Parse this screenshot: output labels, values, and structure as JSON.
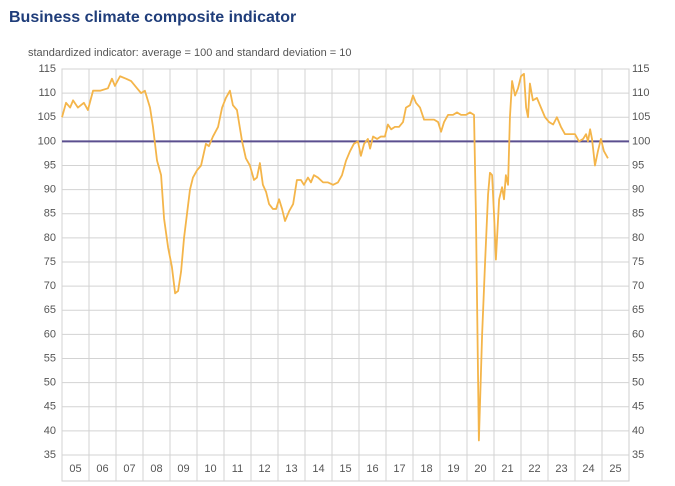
{
  "chart_data": {
    "type": "line",
    "title": "Business climate composite indicator",
    "subtitle": "standardized indicator: average = 100 and standard deviation = 10",
    "color": "#f4b54a",
    "grid": true,
    "reference_line": {
      "value": 100,
      "color": "#5b4f8f"
    },
    "xlim": [
      2005,
      2026
    ],
    "xticks": [
      {
        "value": 2005,
        "label": "05"
      },
      {
        "value": 2006,
        "label": "06"
      },
      {
        "value": 2007,
        "label": "07"
      },
      {
        "value": 2008,
        "label": "08"
      },
      {
        "value": 2009,
        "label": "09"
      },
      {
        "value": 2010,
        "label": "10"
      },
      {
        "value": 2011,
        "label": "11"
      },
      {
        "value": 2012,
        "label": "12"
      },
      {
        "value": 2013,
        "label": "13"
      },
      {
        "value": 2014,
        "label": "14"
      },
      {
        "value": 2015,
        "label": "15"
      },
      {
        "value": 2016,
        "label": "16"
      },
      {
        "value": 2017,
        "label": "17"
      },
      {
        "value": 2018,
        "label": "18"
      },
      {
        "value": 2019,
        "label": "19"
      },
      {
        "value": 2020,
        "label": "20"
      },
      {
        "value": 2021,
        "label": "21"
      },
      {
        "value": 2022,
        "label": "22"
      },
      {
        "value": 2023,
        "label": "23"
      },
      {
        "value": 2024,
        "label": "24"
      },
      {
        "value": 2025,
        "label": "25"
      }
    ],
    "ylim": [
      35,
      115
    ],
    "yticks": [
      35,
      40,
      45,
      50,
      55,
      60,
      65,
      70,
      75,
      80,
      85,
      90,
      95,
      100,
      105,
      110,
      115
    ],
    "x": [
      2005.0,
      2005.15,
      2005.3,
      2005.41,
      2005.59,
      2005.81,
      2005.96,
      2006.15,
      2006.41,
      2006.7,
      2006.85,
      2006.96,
      2007.15,
      2007.37,
      2007.56,
      2007.78,
      2007.93,
      2008.07,
      2008.26,
      2008.37,
      2008.52,
      2008.67,
      2008.78,
      2008.93,
      2009.07,
      2009.19,
      2009.3,
      2009.41,
      2009.52,
      2009.63,
      2009.74,
      2009.85,
      2010.0,
      2010.15,
      2010.33,
      2010.44,
      2010.59,
      2010.78,
      2010.93,
      2011.07,
      2011.22,
      2011.33,
      2011.48,
      2011.67,
      2011.81,
      2011.96,
      2012.11,
      2012.22,
      2012.33,
      2012.44,
      2012.56,
      2012.67,
      2012.81,
      2012.93,
      2013.04,
      2013.15,
      2013.26,
      2013.41,
      2013.56,
      2013.7,
      2013.85,
      2013.96,
      2014.11,
      2014.22,
      2014.33,
      2014.48,
      2014.67,
      2014.85,
      2015.04,
      2015.22,
      2015.37,
      2015.52,
      2015.67,
      2015.81,
      2015.96,
      2016.07,
      2016.19,
      2016.33,
      2016.41,
      2016.52,
      2016.67,
      2016.81,
      2016.96,
      2017.07,
      2017.19,
      2017.33,
      2017.48,
      2017.63,
      2017.74,
      2017.89,
      2018.0,
      2018.11,
      2018.26,
      2018.41,
      2018.59,
      2018.78,
      2018.93,
      2019.04,
      2019.15,
      2019.3,
      2019.48,
      2019.63,
      2019.78,
      2019.96,
      2020.11,
      2020.26,
      2020.33,
      2020.44,
      2020.56,
      2020.67,
      2020.78,
      2020.85,
      2020.93,
      2021.0,
      2021.07,
      2021.19,
      2021.3,
      2021.37,
      2021.44,
      2021.52,
      2021.59,
      2021.67,
      2021.78,
      2021.89,
      2022.0,
      2022.11,
      2022.19,
      2022.26,
      2022.33,
      2022.44,
      2022.59,
      2022.74,
      2022.89,
      2023.04,
      2023.19,
      2023.33,
      2023.48,
      2023.63,
      2023.81,
      2024.0,
      2024.15,
      2024.3,
      2024.41,
      2024.48,
      2024.56,
      2024.63,
      2024.74,
      2024.85,
      2024.96,
      2025.07,
      2025.22
    ],
    "values": [
      105,
      108,
      107,
      108.5,
      107,
      108,
      106.5,
      110.5,
      110.5,
      111,
      113,
      111.5,
      113.5,
      113,
      112.5,
      111,
      110,
      110.5,
      107,
      103,
      96,
      93,
      84,
      78,
      74,
      68.5,
      69,
      73,
      80,
      85,
      90,
      92.5,
      94,
      95,
      99.5,
      99,
      101,
      103,
      107,
      109,
      110.5,
      107.5,
      106.5,
      100,
      96.5,
      95,
      92,
      92.5,
      95.5,
      91,
      89.5,
      87,
      86,
      86,
      88,
      86,
      83.5,
      85.5,
      87,
      92,
      92,
      91,
      92.5,
      91.5,
      93,
      92.5,
      91.5,
      91.5,
      91,
      91.5,
      93,
      96,
      98,
      99.5,
      100,
      97,
      99.5,
      100.5,
      98.5,
      101,
      100.5,
      101,
      101,
      103.5,
      102.5,
      103,
      103,
      104,
      107,
      107.5,
      109.5,
      108,
      107,
      104.5,
      104.5,
      104.5,
      104,
      102,
      104,
      105.5,
      105.5,
      106,
      105.5,
      105.5,
      106,
      105.5,
      85,
      38,
      60,
      75,
      89,
      93.5,
      93,
      85,
      75.5,
      88,
      90.5,
      88,
      93,
      91,
      105,
      112.5,
      109.5,
      111,
      113.5,
      114,
      107,
      105,
      112,
      108.5,
      109,
      107,
      105,
      104,
      103.5,
      105,
      103,
      101.5,
      101.5,
      101.5,
      100,
      100.5,
      101.5,
      100,
      102.5,
      100.5,
      95,
      98,
      100.5,
      98,
      96.5
    ]
  }
}
